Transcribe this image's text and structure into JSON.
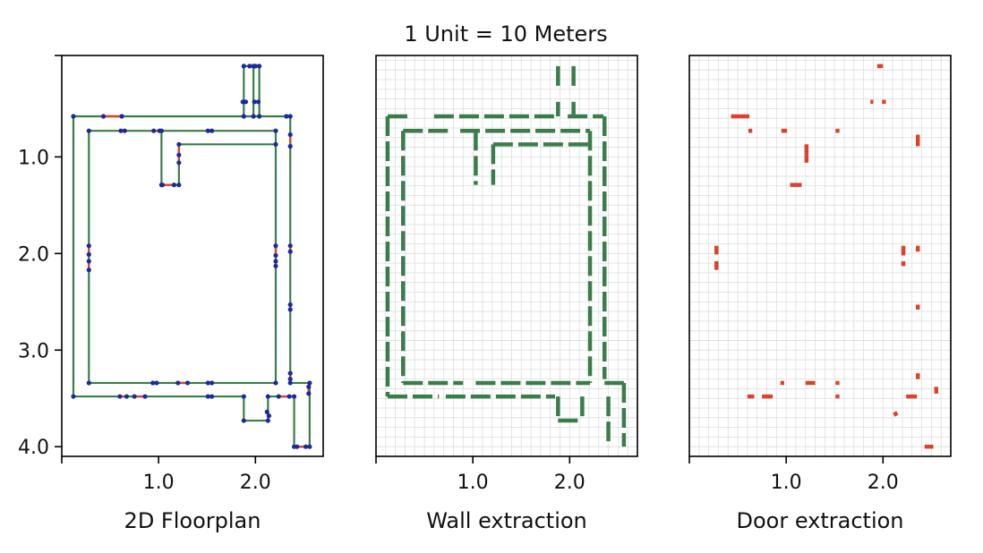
{
  "suptitle": "1 Unit = 10 Meters",
  "panels": {
    "floorplan": {
      "xlabel": "2D Floorplan"
    },
    "walls": {
      "xlabel": "Wall extraction"
    },
    "doors": {
      "xlabel": "Door extraction"
    }
  },
  "colors": {
    "wall": "#3a7d4a",
    "door": "#d9432b",
    "vertex": "#1a2a9c",
    "grid": "#dddddd"
  },
  "axes": {
    "x_ticks": [
      "1.0",
      "2.0"
    ],
    "y_ticks": [
      "1.0",
      "2.0",
      "3.0",
      "4.0"
    ]
  },
  "chart_data": {
    "type": "diagram",
    "xlim": [
      0,
      2.7
    ],
    "ylim": [
      4.1,
      -0.05
    ],
    "walls": [
      [
        [
          0.12,
          0.58
        ],
        [
          2.32,
          0.58
        ]
      ],
      [
        [
          0.12,
          0.58
        ],
        [
          0.12,
          3.48
        ]
      ],
      [
        [
          0.12,
          3.48
        ],
        [
          1.88,
          3.48
        ]
      ],
      [
        [
          1.88,
          3.48
        ],
        [
          1.88,
          3.73
        ]
      ],
      [
        [
          1.88,
          3.73
        ],
        [
          2.13,
          3.73
        ]
      ],
      [
        [
          2.13,
          3.73
        ],
        [
          2.13,
          3.48
        ]
      ],
      [
        [
          2.13,
          3.48
        ],
        [
          2.4,
          3.48
        ]
      ],
      [
        [
          2.4,
          3.48
        ],
        [
          2.4,
          4.0
        ]
      ],
      [
        [
          2.4,
          4.0
        ],
        [
          2.56,
          4.0
        ]
      ],
      [
        [
          2.56,
          4.0
        ],
        [
          2.56,
          3.34
        ]
      ],
      [
        [
          2.56,
          3.34
        ],
        [
          2.36,
          3.34
        ]
      ],
      [
        [
          2.36,
          3.34
        ],
        [
          2.36,
          0.58
        ]
      ],
      [
        [
          0.28,
          0.73
        ],
        [
          2.21,
          0.73
        ]
      ],
      [
        [
          0.28,
          0.73
        ],
        [
          0.28,
          3.34
        ]
      ],
      [
        [
          0.28,
          3.34
        ],
        [
          2.21,
          3.34
        ]
      ],
      [
        [
          2.21,
          3.34
        ],
        [
          2.21,
          0.73
        ]
      ],
      [
        [
          1.03,
          0.73
        ],
        [
          1.03,
          1.29
        ]
      ],
      [
        [
          1.03,
          1.29
        ],
        [
          1.21,
          1.29
        ]
      ],
      [
        [
          1.21,
          1.29
        ],
        [
          1.21,
          0.87
        ]
      ],
      [
        [
          1.21,
          0.87
        ],
        [
          2.21,
          0.87
        ]
      ],
      [
        [
          1.88,
          0.58
        ],
        [
          1.88,
          0.06
        ]
      ],
      [
        [
          1.88,
          0.06
        ],
        [
          2.04,
          0.06
        ]
      ],
      [
        [
          2.04,
          0.06
        ],
        [
          2.04,
          0.58
        ]
      ],
      [
        [
          1.98,
          0.58
        ],
        [
          1.98,
          0.06
        ]
      ]
    ],
    "doors": [
      [
        [
          0.43,
          0.58
        ],
        [
          0.62,
          0.58
        ]
      ],
      [
        [
          0.61,
          0.73
        ],
        [
          0.65,
          0.73
        ]
      ],
      [
        [
          0.95,
          0.73
        ],
        [
          1.01,
          0.73
        ]
      ],
      [
        [
          1.21,
          0.87
        ],
        [
          1.21,
          0.98
        ]
      ],
      [
        [
          1.21,
          0.98
        ],
        [
          1.21,
          1.06
        ]
      ],
      [
        [
          1.04,
          1.29
        ],
        [
          1.16,
          1.29
        ]
      ],
      [
        [
          1.51,
          0.73
        ],
        [
          1.55,
          0.73
        ]
      ],
      [
        [
          0.28,
          1.92
        ],
        [
          0.28,
          2.01
        ]
      ],
      [
        [
          0.28,
          2.08
        ],
        [
          0.28,
          2.17
        ]
      ],
      [
        [
          2.21,
          1.92
        ],
        [
          2.21,
          2.02
        ]
      ],
      [
        [
          2.21,
          2.08
        ],
        [
          2.21,
          2.13
        ]
      ],
      [
        [
          2.36,
          1.92
        ],
        [
          2.36,
          1.98
        ]
      ],
      [
        [
          2.36,
          0.77
        ],
        [
          2.36,
          0.89
        ]
      ],
      [
        [
          2.36,
          2.53
        ],
        [
          2.36,
          2.58
        ]
      ],
      [
        [
          2.36,
          3.24
        ],
        [
          2.36,
          3.3
        ]
      ],
      [
        [
          0.94,
          3.34
        ],
        [
          0.98,
          3.34
        ]
      ],
      [
        [
          1.2,
          3.34
        ],
        [
          1.3,
          3.34
        ]
      ],
      [
        [
          1.51,
          3.34
        ],
        [
          1.55,
          3.34
        ]
      ],
      [
        [
          0.6,
          3.48
        ],
        [
          0.67,
          3.48
        ]
      ],
      [
        [
          0.75,
          3.48
        ],
        [
          0.86,
          3.48
        ]
      ],
      [
        [
          1.51,
          3.48
        ],
        [
          1.55,
          3.48
        ]
      ],
      [
        [
          2.24,
          3.48
        ],
        [
          2.35,
          3.48
        ]
      ],
      [
        [
          2.12,
          3.64
        ],
        [
          2.14,
          3.68
        ]
      ],
      [
        [
          2.55,
          3.38
        ],
        [
          2.55,
          3.45
        ]
      ],
      [
        [
          2.43,
          4.0
        ],
        [
          2.52,
          4.0
        ]
      ],
      [
        [
          1.94,
          0.06
        ],
        [
          2.0,
          0.06
        ]
      ],
      [
        [
          1.87,
          0.43
        ],
        [
          1.9,
          0.43
        ]
      ],
      [
        [
          1.99,
          0.43
        ],
        [
          2.03,
          0.43
        ]
      ]
    ],
    "wall_extraction_segments": [
      [
        [
          0.12,
          0.58
        ],
        [
          0.35,
          0.58
        ]
      ],
      [
        [
          0.6,
          0.58
        ],
        [
          1.85,
          0.58
        ]
      ],
      [
        [
          1.98,
          0.58
        ],
        [
          2.35,
          0.58
        ]
      ],
      [
        [
          0.12,
          0.58
        ],
        [
          0.12,
          3.48
        ]
      ],
      [
        [
          0.12,
          3.48
        ],
        [
          0.65,
          3.48
        ]
      ],
      [
        [
          0.72,
          3.48
        ],
        [
          1.85,
          3.48
        ]
      ],
      [
        [
          1.88,
          3.48
        ],
        [
          1.88,
          3.73
        ]
      ],
      [
        [
          1.88,
          3.73
        ],
        [
          2.13,
          3.73
        ]
      ],
      [
        [
          2.13,
          3.48
        ],
        [
          2.13,
          3.73
        ]
      ],
      [
        [
          2.36,
          0.58
        ],
        [
          2.36,
          3.3
        ]
      ],
      [
        [
          2.21,
          0.73
        ],
        [
          2.21,
          3.34
        ]
      ],
      [
        [
          0.28,
          0.73
        ],
        [
          0.28,
          3.34
        ]
      ],
      [
        [
          0.28,
          0.73
        ],
        [
          0.78,
          0.73
        ]
      ],
      [
        [
          0.87,
          0.73
        ],
        [
          2.21,
          0.73
        ]
      ],
      [
        [
          0.28,
          3.34
        ],
        [
          0.9,
          3.34
        ]
      ],
      [
        [
          1.03,
          3.34
        ],
        [
          2.21,
          3.34
        ]
      ],
      [
        [
          1.03,
          0.73
        ],
        [
          1.03,
          1.29
        ]
      ],
      [
        [
          1.21,
          0.87
        ],
        [
          1.21,
          1.29
        ]
      ],
      [
        [
          1.21,
          0.87
        ],
        [
          2.21,
          0.87
        ]
      ],
      [
        [
          1.88,
          0.06
        ],
        [
          1.88,
          0.3
        ]
      ],
      [
        [
          2.04,
          0.06
        ],
        [
          2.04,
          0.3
        ]
      ],
      [
        [
          1.88,
          0.43
        ],
        [
          1.88,
          0.58
        ]
      ],
      [
        [
          2.04,
          0.43
        ],
        [
          2.04,
          0.58
        ]
      ],
      [
        [
          2.4,
          3.48
        ],
        [
          2.4,
          4.0
        ]
      ],
      [
        [
          2.56,
          3.34
        ],
        [
          2.56,
          4.0
        ]
      ],
      [
        [
          2.36,
          3.34
        ],
        [
          2.56,
          3.34
        ]
      ]
    ]
  }
}
